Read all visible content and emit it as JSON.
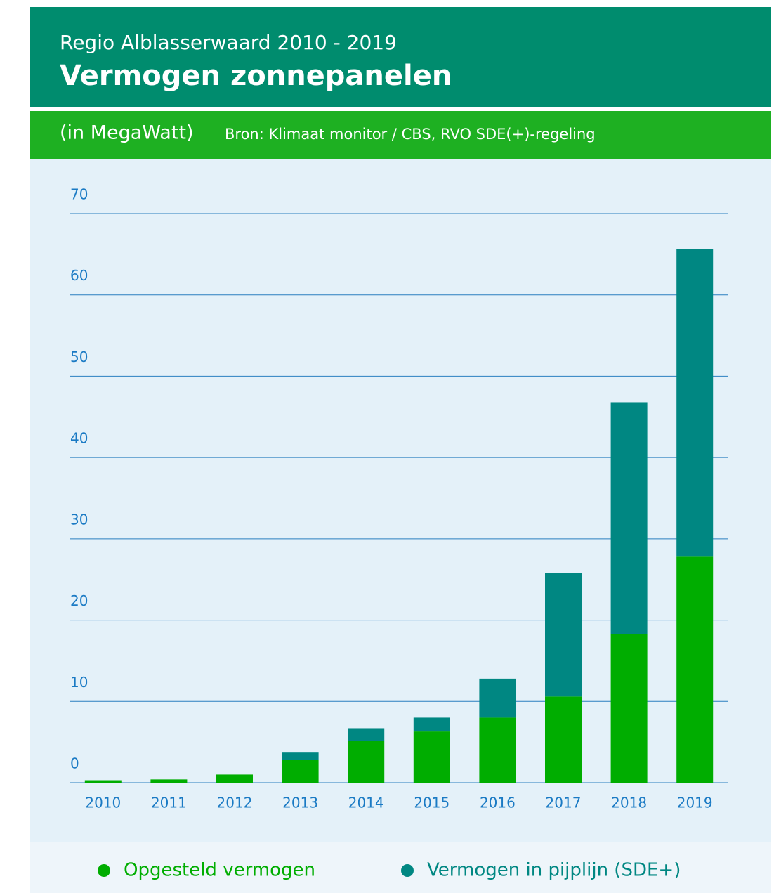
{
  "chart_data": {
    "type": "stacked_bar",
    "supertitle": "Regio Alblasserwaard 2010 - 2019",
    "title": "Vermogen zonnepanelen",
    "unit": "(in MegaWatt)",
    "source": "Bron: Klimaat monitor / CBS, RVO SDE(+)-regeling",
    "categories": [
      "2010",
      "2011",
      "2012",
      "2013",
      "2014",
      "2015",
      "2016",
      "2017",
      "2018",
      "2019"
    ],
    "series": [
      {
        "name": "Opgesteld vermogen",
        "color": "#00ad00",
        "values": [
          0.3,
          0.4,
          1.0,
          2.8,
          5.1,
          6.3,
          8.0,
          10.6,
          18.3,
          27.8
        ]
      },
      {
        "name": "Vermogen in pijplijn (SDE+)",
        "color": "#008782",
        "values": [
          0,
          0,
          0,
          0.9,
          1.6,
          1.7,
          4.8,
          15.2,
          28.5,
          37.8
        ]
      }
    ],
    "ylim": [
      0,
      70
    ],
    "yticks": [
      0,
      10,
      20,
      30,
      40,
      50,
      60,
      70
    ],
    "grid": true
  }
}
